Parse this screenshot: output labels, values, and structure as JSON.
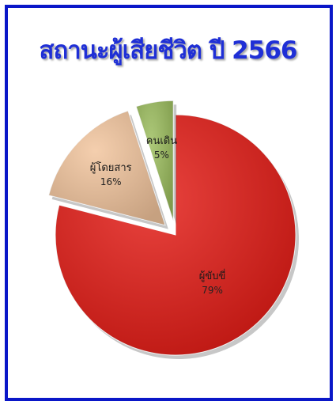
{
  "chart_data": {
    "type": "pie",
    "title": "สถานะผู้เสียชีวิต ปี 2566",
    "slices": [
      {
        "label": "ผู้ขับขี่",
        "value": 79,
        "value_label": "79%",
        "color": "#e41a14",
        "exploded": false
      },
      {
        "label": "ผู้โดยสาร",
        "value": 16,
        "value_label": "16%",
        "color": "#f2c49c",
        "exploded": true
      },
      {
        "label": "คนเดิน",
        "value": 5,
        "value_label": "5%",
        "color": "#9bbd5c",
        "exploded": true
      }
    ],
    "start_angle_deg": 0,
    "direction": "clockwise",
    "legend": "none",
    "data_labels": "inside"
  }
}
